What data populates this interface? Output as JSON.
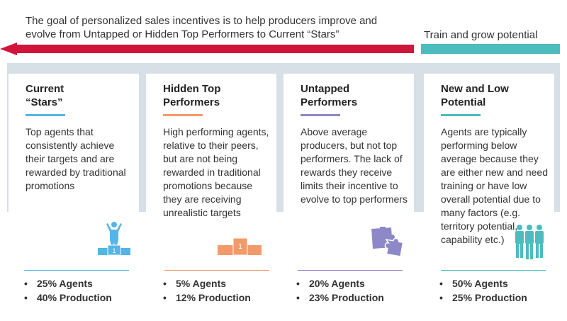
{
  "intro_text": "The goal of personalized sales incentives is to help producers improve and evolve from Untapped or Hidden Top Performers to Current “Stars”",
  "train_text": "Train and grow potential",
  "colors": {
    "arrow_red": "#d1143c",
    "teal": "#4cbcbf",
    "band": "#d7dfe7",
    "stars_accent": "#56b4e6",
    "hidden_accent": "#f39a6b",
    "untapped_accent": "#8e88c9",
    "new_accent": "#4cbcbf"
  },
  "cards": [
    {
      "title_line1": "Current",
      "title_line2": "“Stars”",
      "description": "Top agents that consistently achieve their targets and are rewarded by traditional promotions",
      "icon": "champion-podium-icon",
      "podium_label": "1",
      "stats": [
        "25% Agents",
        "40% Production"
      ]
    },
    {
      "title_line1": "Hidden Top",
      "title_line2": "Performers",
      "description": "High performing agents, relative to their peers, but are not being rewarded in traditional promotions because they are receiving unrealistic targets",
      "icon": "empty-podium-icon",
      "podium_label": "1",
      "stats": [
        "5% Agents",
        "12% Production"
      ]
    },
    {
      "title_line1": "Untapped",
      "title_line2": "Performers",
      "description": "Above average producers, but not top performers. The lack of rewards they receive limits their incentive to evolve to top performers",
      "icon": "puzzle-pieces-icon",
      "stats": [
        "20% Agents",
        "23% Production"
      ]
    },
    {
      "title_line1": "New and Low",
      "title_line2": "Potential",
      "description": "Agents are typically performing below average because they are either new and need training or have low overall potential due to many factors (e.g. territory potential, capability etc.)",
      "icon": "people-group-icon",
      "stats": [
        "50% Agents",
        "25% Production"
      ]
    }
  ]
}
